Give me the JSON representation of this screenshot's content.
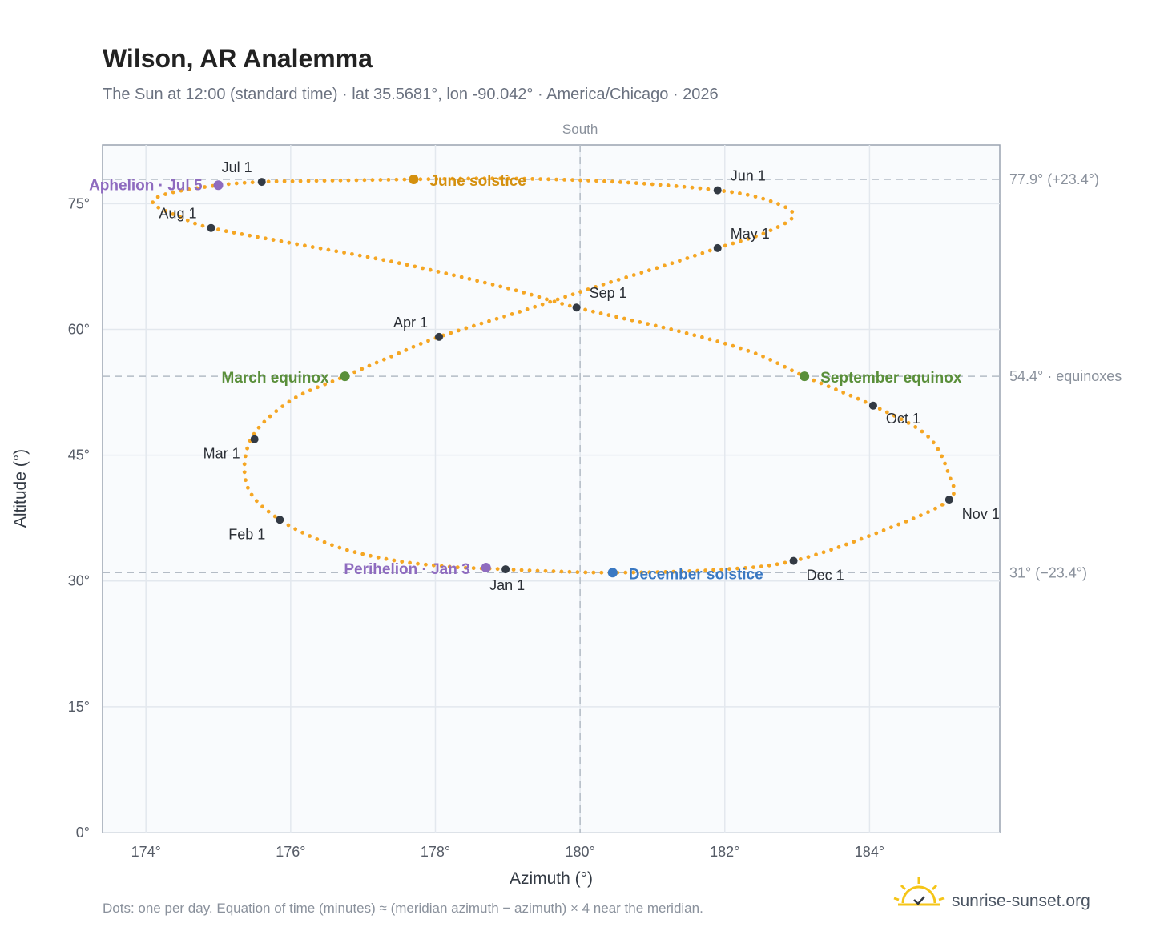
{
  "header": {
    "title": "Wilson, AR Analemma",
    "subtitle": "The Sun at 12:00 (standard time) · lat 35.5681°, lon -90.042° · America/Chicago · 2026"
  },
  "footer": {
    "note": "Dots: one per day. Equation of time (minutes) ≈ (meridian azimuth − azimuth) × 4 near the meridian.",
    "brand": "sunrise-sunset.org"
  },
  "chart_data": {
    "type": "scatter",
    "title": "Wilson, AR Analemma",
    "subtitle": "The Sun at 12:00 (standard time) · lat 35.5681°, lon -90.042° · America/Chicago · 2026",
    "xlabel": "Azimuth (°)",
    "ylabel": "Altitude (°)",
    "xlim": [
      173.4,
      185.8
    ],
    "ylim": [
      0,
      82
    ],
    "x_ticks": [
      174,
      176,
      178,
      180,
      182,
      184
    ],
    "x_tick_labels": [
      "174°",
      "176°",
      "178°",
      "180°",
      "182°",
      "184°"
    ],
    "y_ticks": [
      0,
      15,
      30,
      45,
      60,
      75
    ],
    "y_tick_labels": [
      "0°",
      "15°",
      "30°",
      "45°",
      "60°",
      "75°"
    ],
    "grid": true,
    "meridian": {
      "x": 180,
      "label": "South"
    },
    "reference_lines": [
      {
        "y": 77.9,
        "label": "77.9° (+23.4°)"
      },
      {
        "y": 54.4,
        "label": "54.4° · equinoxes"
      },
      {
        "y": 31.0,
        "label": "31° (−23.4°)"
      }
    ],
    "analemma_path": {
      "description_points": [
        [
          178.97,
          31.4
        ],
        [
          178.2,
          31.7
        ],
        [
          177.4,
          32.5
        ],
        [
          176.6,
          34.2
        ],
        [
          175.85,
          37.3
        ],
        [
          175.4,
          41.3
        ],
        [
          175.45,
          46.9
        ],
        [
          176.0,
          51.5
        ],
        [
          176.75,
          54.4
        ],
        [
          177.4,
          56.8
        ],
        [
          178.05,
          59.1
        ],
        [
          179.2,
          62.2
        ],
        [
          180.3,
          65.3
        ],
        [
          181.2,
          67.7
        ],
        [
          181.9,
          69.7
        ],
        [
          182.55,
          71.5
        ],
        [
          182.95,
          73.6
        ],
        [
          182.6,
          75.4
        ],
        [
          181.9,
          76.6
        ],
        [
          180.5,
          77.6
        ],
        [
          179.0,
          78.0
        ],
        [
          177.7,
          77.9
        ],
        [
          176.2,
          77.7
        ],
        [
          175.6,
          77.6
        ],
        [
          175.0,
          77.2
        ],
        [
          174.3,
          76.2
        ],
        [
          174.1,
          75.0
        ],
        [
          174.5,
          73.3
        ],
        [
          174.9,
          72.1
        ],
        [
          176.0,
          70.3
        ],
        [
          177.5,
          67.9
        ],
        [
          179.0,
          64.9
        ],
        [
          179.95,
          62.6
        ],
        [
          181.4,
          59.7
        ],
        [
          182.4,
          57.2
        ],
        [
          183.1,
          54.4
        ],
        [
          184.05,
          50.9
        ],
        [
          184.8,
          47.3
        ],
        [
          185.1,
          42.6
        ],
        [
          185.1,
          39.7
        ],
        [
          184.3,
          36.4
        ],
        [
          182.95,
          32.4
        ],
        [
          181.8,
          31.3
        ],
        [
          180.45,
          31.0
        ],
        [
          179.5,
          31.2
        ],
        [
          178.97,
          31.4
        ]
      ],
      "color": "#f5a623"
    },
    "month_points": [
      {
        "label": "Jan 1",
        "x": 178.97,
        "y": 31.4
      },
      {
        "label": "Feb 1",
        "x": 175.85,
        "y": 37.3
      },
      {
        "label": "Mar 1",
        "x": 175.5,
        "y": 46.9
      },
      {
        "label": "Apr 1",
        "x": 178.05,
        "y": 59.1
      },
      {
        "label": "May 1",
        "x": 181.9,
        "y": 69.7
      },
      {
        "label": "Jun 1",
        "x": 181.9,
        "y": 76.6
      },
      {
        "label": "Jul 1",
        "x": 175.6,
        "y": 77.6
      },
      {
        "label": "Aug 1",
        "x": 174.9,
        "y": 72.1
      },
      {
        "label": "Sep 1",
        "x": 179.95,
        "y": 62.6
      },
      {
        "label": "Oct 1",
        "x": 184.05,
        "y": 50.9
      },
      {
        "label": "Nov 1",
        "x": 185.1,
        "y": 39.7
      },
      {
        "label": "Dec 1",
        "x": 182.95,
        "y": 32.4
      }
    ],
    "events": [
      {
        "label": "June solstice",
        "x": 177.7,
        "y": 77.9,
        "color": "#d4900f"
      },
      {
        "label": "Aphelion · Jul 5",
        "x": 175.0,
        "y": 77.2,
        "color": "#8e6bbf"
      },
      {
        "label": "March equinox",
        "x": 176.75,
        "y": 54.4,
        "color": "#5a8f3a"
      },
      {
        "label": "September equinox",
        "x": 183.1,
        "y": 54.4,
        "color": "#5a8f3a"
      },
      {
        "label": "Perihelion · Jan 3",
        "x": 178.7,
        "y": 31.6,
        "color": "#8e6bbf"
      },
      {
        "label": "December solstice",
        "x": 180.45,
        "y": 31.0,
        "color": "#3a78c2"
      }
    ]
  }
}
